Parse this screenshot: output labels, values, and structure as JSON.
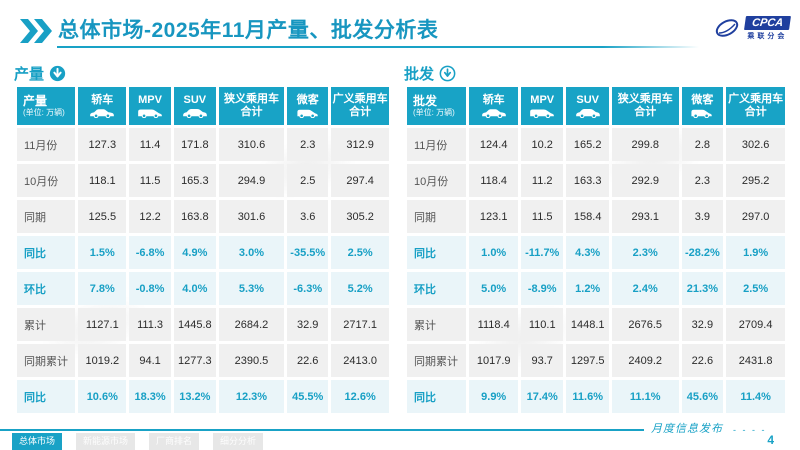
{
  "header": {
    "title": "总体市场-2025年11月产量、批发分析表",
    "logo_brand": "CPCA",
    "logo_sub": "乘联分会"
  },
  "colors": {
    "accent": "#18a0c5",
    "header_bg": "#18a3c6",
    "row_bg": "#f0f0f0",
    "highlight_row_bg": "#eaf5f9",
    "logo_blue": "#1f3f9e"
  },
  "tables": [
    {
      "section_label": "产量",
      "arrow_style": "filled",
      "corner_label": "产量",
      "unit_note": "(单位: 万辆)",
      "columns": [
        {
          "lines": [
            "轿车"
          ],
          "icon": "sedan-icon"
        },
        {
          "lines": [
            "MPV"
          ],
          "icon": "mpv-icon"
        },
        {
          "lines": [
            "SUV"
          ],
          "icon": "suv-icon"
        },
        {
          "lines": [
            "狭义乘用车",
            "合计"
          ]
        },
        {
          "lines": [
            "微客"
          ],
          "icon": "microvan-icon"
        },
        {
          "lines": [
            "广义乘用车",
            "合计"
          ]
        }
      ],
      "rows": [
        {
          "label": "11月份",
          "values": [
            "127.3",
            "11.4",
            "171.8",
            "310.6",
            "2.3",
            "312.9"
          ],
          "highlight": false
        },
        {
          "label": "10月份",
          "values": [
            "118.1",
            "11.5",
            "165.3",
            "294.9",
            "2.5",
            "297.4"
          ],
          "highlight": false
        },
        {
          "label": "同期",
          "values": [
            "125.5",
            "12.2",
            "163.8",
            "301.6",
            "3.6",
            "305.2"
          ],
          "highlight": false
        },
        {
          "label": "同比",
          "values": [
            "1.5%",
            "-6.8%",
            "4.9%",
            "3.0%",
            "-35.5%",
            "2.5%"
          ],
          "highlight": true
        },
        {
          "label": "环比",
          "values": [
            "7.8%",
            "-0.8%",
            "4.0%",
            "5.3%",
            "-6.3%",
            "5.2%"
          ],
          "highlight": true
        },
        {
          "label": "累计",
          "values": [
            "1127.1",
            "111.3",
            "1445.8",
            "2684.2",
            "32.9",
            "2717.1"
          ],
          "highlight": false
        },
        {
          "label": "同期累计",
          "values": [
            "1019.2",
            "94.1",
            "1277.3",
            "2390.5",
            "22.6",
            "2413.0"
          ],
          "highlight": false
        },
        {
          "label": "同比",
          "values": [
            "10.6%",
            "18.3%",
            "13.2%",
            "12.3%",
            "45.5%",
            "12.6%"
          ],
          "highlight": true
        }
      ]
    },
    {
      "section_label": "批发",
      "arrow_style": "outline",
      "corner_label": "批发",
      "unit_note": "(单位: 万辆)",
      "columns": [
        {
          "lines": [
            "轿车"
          ],
          "icon": "sedan-icon"
        },
        {
          "lines": [
            "MPV"
          ],
          "icon": "mpv-icon"
        },
        {
          "lines": [
            "SUV"
          ],
          "icon": "suv-icon"
        },
        {
          "lines": [
            "狭义乘用车",
            "合计"
          ]
        },
        {
          "lines": [
            "微客"
          ],
          "icon": "microvan-icon"
        },
        {
          "lines": [
            "广义乘用车",
            "合计"
          ]
        }
      ],
      "rows": [
        {
          "label": "11月份",
          "values": [
            "124.4",
            "10.2",
            "165.2",
            "299.8",
            "2.8",
            "302.6"
          ],
          "highlight": false
        },
        {
          "label": "10月份",
          "values": [
            "118.4",
            "11.2",
            "163.3",
            "292.9",
            "2.3",
            "295.2"
          ],
          "highlight": false
        },
        {
          "label": "同期",
          "values": [
            "123.1",
            "11.5",
            "158.4",
            "293.1",
            "3.9",
            "297.0"
          ],
          "highlight": false
        },
        {
          "label": "同比",
          "values": [
            "1.0%",
            "-11.7%",
            "4.3%",
            "2.3%",
            "-28.2%",
            "1.9%"
          ],
          "highlight": true
        },
        {
          "label": "环比",
          "values": [
            "5.0%",
            "-8.9%",
            "1.2%",
            "2.4%",
            "21.3%",
            "2.5%"
          ],
          "highlight": true
        },
        {
          "label": "累计",
          "values": [
            "1118.4",
            "110.1",
            "1448.1",
            "2676.5",
            "32.9",
            "2709.4"
          ],
          "highlight": false
        },
        {
          "label": "同期累计",
          "values": [
            "1017.9",
            "93.7",
            "1297.5",
            "2409.2",
            "22.6",
            "2431.8"
          ],
          "highlight": false
        },
        {
          "label": "同比",
          "values": [
            "9.9%",
            "17.4%",
            "11.6%",
            "11.1%",
            "45.6%",
            "11.4%"
          ],
          "highlight": true
        }
      ]
    }
  ],
  "footer": {
    "tabs": [
      {
        "label": "总体市场",
        "active": true
      },
      {
        "label": "新能源市场",
        "active": false
      },
      {
        "label": "厂商排名",
        "active": false
      },
      {
        "label": "细分分析",
        "active": false
      }
    ],
    "script_text": "月度信息发布",
    "dashes": "- - - -",
    "page_number": "4"
  }
}
